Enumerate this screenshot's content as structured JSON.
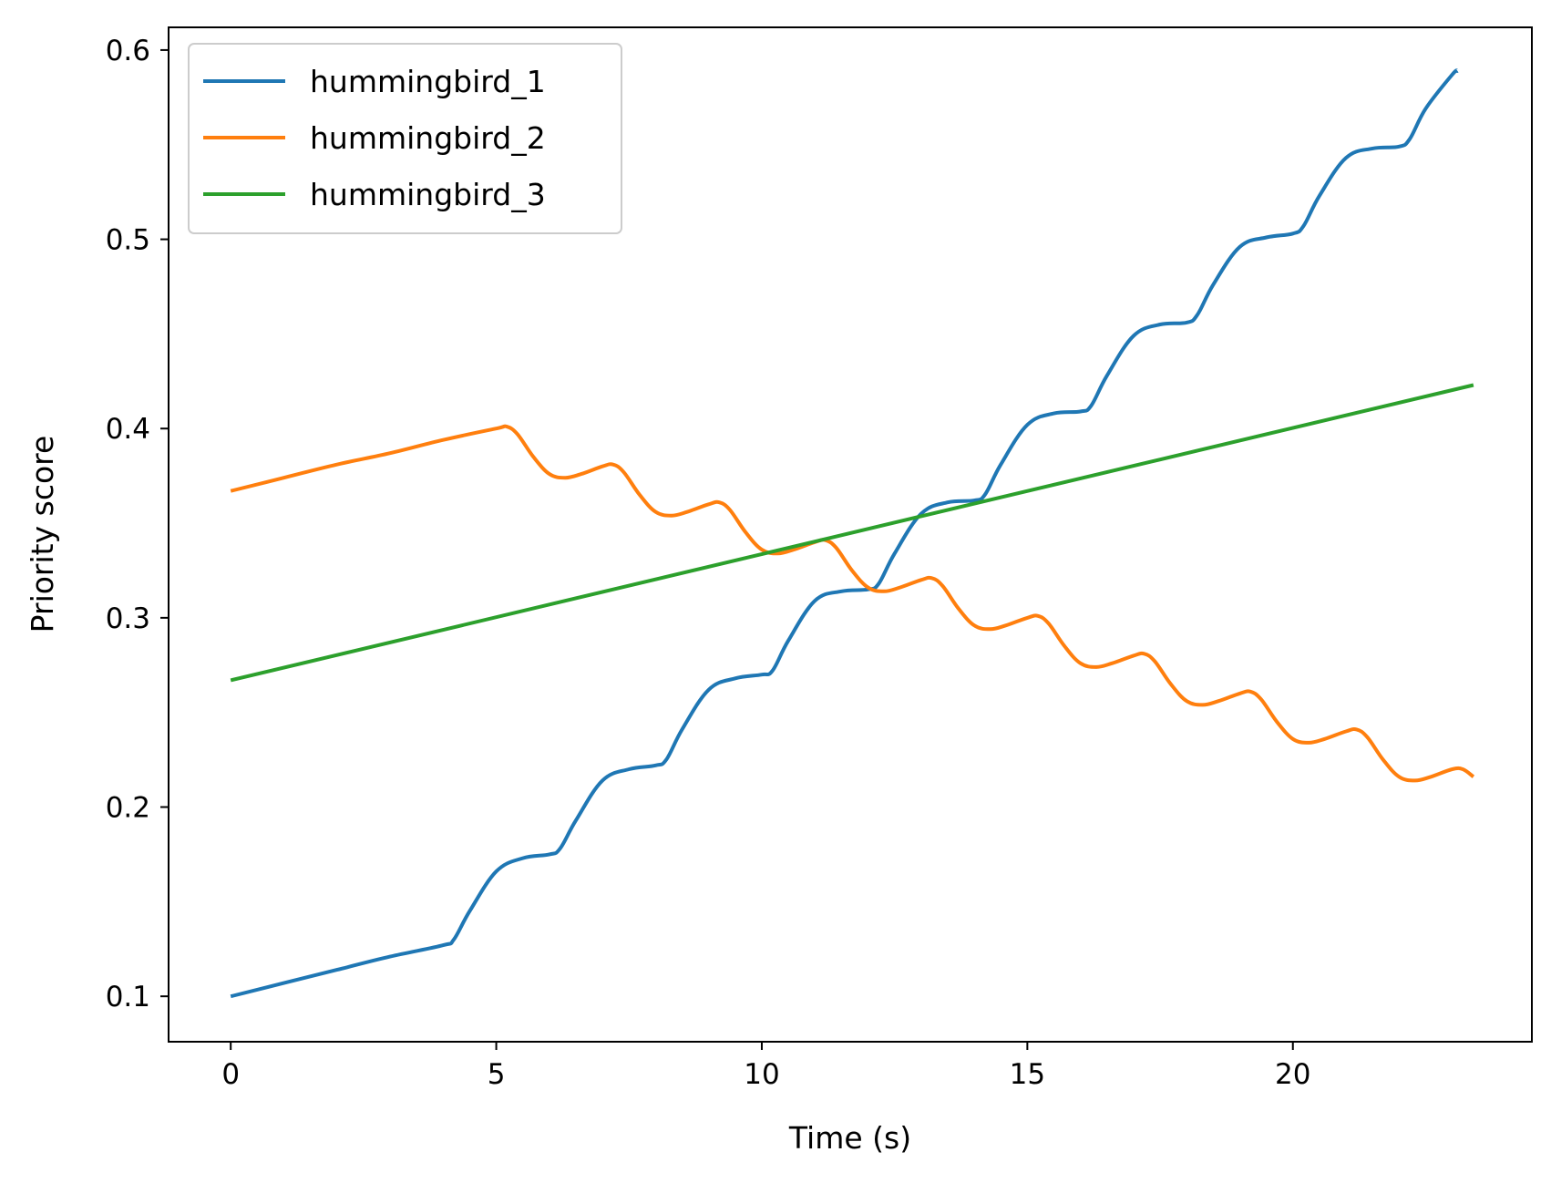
{
  "chart_data": {
    "type": "line",
    "title": "",
    "xlabel": "Time (s)",
    "ylabel": "Priority score",
    "xlim": [
      -1.17,
      24.5
    ],
    "ylim": [
      0.076,
      0.612
    ],
    "x_ticks": [
      0,
      5,
      10,
      15,
      20
    ],
    "y_ticks": [
      0.1,
      0.2,
      0.3,
      0.4,
      0.5,
      0.6
    ],
    "x_tick_labels": [
      "0",
      "5",
      "10",
      "15",
      "20"
    ],
    "y_tick_labels": [
      "0.1",
      "0.2",
      "0.3",
      "0.4",
      "0.5",
      "0.6"
    ],
    "grid": false,
    "legend": {
      "position": "upper-left",
      "entries": [
        "hummingbird_1",
        "hummingbird_2",
        "hummingbird_3"
      ]
    },
    "series": [
      {
        "name": "hummingbird_1",
        "color": "#1f77b4",
        "x": [
          0,
          1,
          2,
          3,
          4,
          4.2,
          4.5,
          5,
          5.5,
          6,
          6.2,
          6.5,
          7,
          7.5,
          8,
          8.2,
          8.5,
          9,
          9.5,
          10,
          10.2,
          10.5,
          11,
          11.5,
          12,
          12.2,
          12.5,
          13,
          13.5,
          14,
          14.2,
          14.5,
          15,
          15.5,
          16,
          16.2,
          16.5,
          17,
          17.5,
          18,
          18.2,
          18.5,
          19,
          19.5,
          20,
          20.2,
          20.5,
          21,
          21.5,
          22,
          22.2,
          22.5,
          23,
          23.1
        ],
        "values": [
          0.1,
          0.107,
          0.114,
          0.121,
          0.127,
          0.13,
          0.145,
          0.166,
          0.173,
          0.175,
          0.178,
          0.193,
          0.214,
          0.22,
          0.222,
          0.225,
          0.241,
          0.262,
          0.268,
          0.27,
          0.272,
          0.288,
          0.309,
          0.314,
          0.315,
          0.318,
          0.334,
          0.355,
          0.361,
          0.362,
          0.365,
          0.381,
          0.402,
          0.408,
          0.409,
          0.412,
          0.428,
          0.449,
          0.455,
          0.456,
          0.46,
          0.476,
          0.496,
          0.501,
          0.503,
          0.507,
          0.523,
          0.543,
          0.548,
          0.549,
          0.553,
          0.569,
          0.587,
          0.589
        ]
      },
      {
        "name": "hummingbird_2",
        "color": "#ff7f0e",
        "x": [
          0,
          1,
          2,
          3,
          4,
          5,
          5.2,
          5.4,
          5.7,
          6,
          6.3,
          6.6,
          7,
          7.2,
          7.4,
          7.7,
          8,
          8.3,
          8.6,
          9,
          9.2,
          9.4,
          9.7,
          10,
          10.3,
          10.6,
          11,
          11.2,
          11.4,
          11.7,
          12,
          12.3,
          12.6,
          13,
          13.2,
          13.4,
          13.7,
          14,
          14.3,
          14.6,
          15,
          15.2,
          15.4,
          15.7,
          16,
          16.3,
          16.6,
          17,
          17.2,
          17.4,
          17.7,
          18,
          18.3,
          18.6,
          19,
          19.2,
          19.4,
          19.7,
          20,
          20.3,
          20.6,
          21,
          21.2,
          21.4,
          21.7,
          22,
          22.3,
          22.6,
          23,
          23.2,
          23.4
        ],
        "values": [
          0.367,
          0.374,
          0.381,
          0.387,
          0.394,
          0.4,
          0.401,
          0.397,
          0.385,
          0.376,
          0.374,
          0.376,
          0.38,
          0.381,
          0.377,
          0.365,
          0.356,
          0.354,
          0.356,
          0.36,
          0.361,
          0.357,
          0.345,
          0.336,
          0.334,
          0.336,
          0.34,
          0.341,
          0.337,
          0.325,
          0.316,
          0.314,
          0.316,
          0.32,
          0.321,
          0.317,
          0.305,
          0.296,
          0.294,
          0.296,
          0.3,
          0.301,
          0.297,
          0.285,
          0.276,
          0.274,
          0.276,
          0.28,
          0.281,
          0.277,
          0.265,
          0.256,
          0.254,
          0.256,
          0.26,
          0.261,
          0.257,
          0.245,
          0.236,
          0.234,
          0.236,
          0.24,
          0.241,
          0.237,
          0.225,
          0.216,
          0.214,
          0.216,
          0.22,
          0.22,
          0.216
        ]
      },
      {
        "name": "hummingbird_3",
        "color": "#2ca02c",
        "x": [
          0,
          23.4
        ],
        "values": [
          0.267,
          0.423
        ]
      }
    ]
  }
}
